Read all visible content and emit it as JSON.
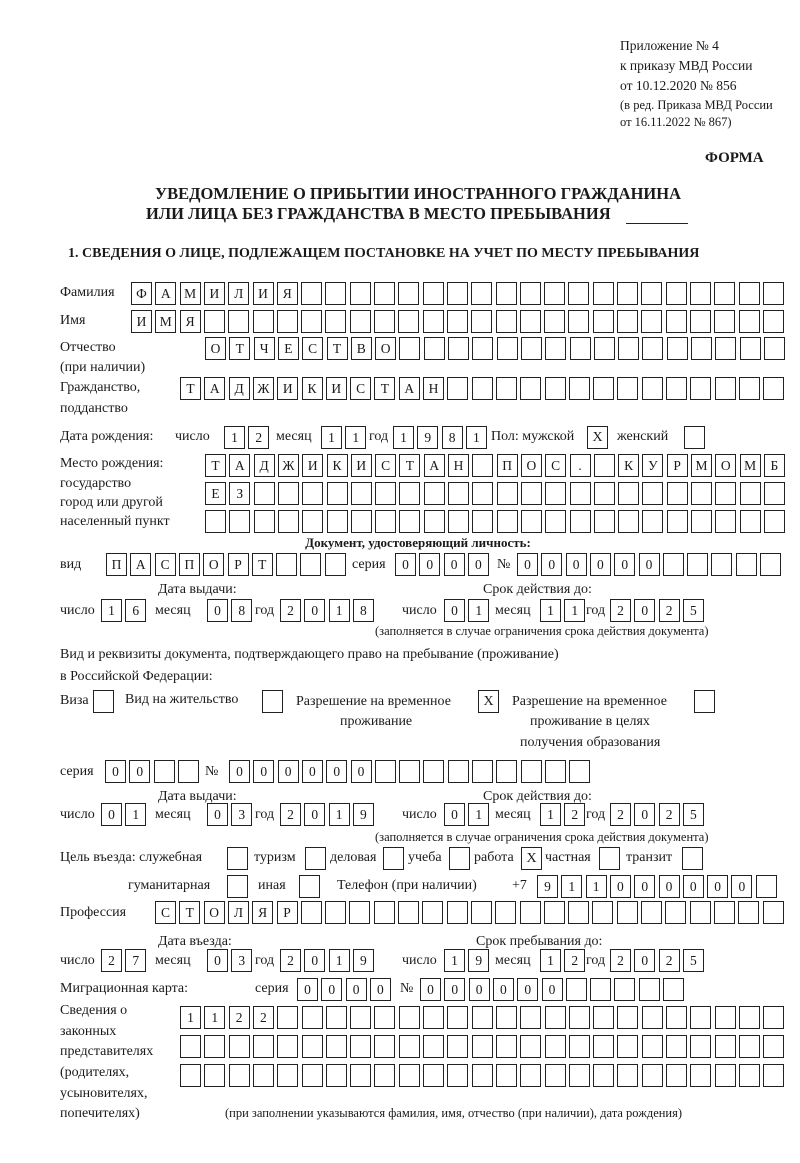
{
  "header": {
    "appendix": "Приложение № 4",
    "order": "к приказу МВД России",
    "order_date": "от 10.12.2020 № 856",
    "edition_1": "(в ред. Приказа МВД России",
    "edition_2": "от 16.11.2022 № 867)",
    "form_label": "ФОРМА"
  },
  "title": {
    "line1": "УВЕДОМЛЕНИЕ О ПРИБЫТИИ ИНОСТРАННОГО ГРАЖДАНИНА",
    "line2": "ИЛИ ЛИЦА БЕЗ ГРАЖДАНСТВА В МЕСТО ПРЕБЫВАНИЯ"
  },
  "section1": {
    "heading": "1. СВЕДЕНИЯ О ЛИЦЕ, ПОДЛЕЖАЩЕМ ПОСТАНОВКЕ НА УЧЕТ ПО МЕСТУ ПРЕБЫВАНИЯ",
    "labels": {
      "surname": "Фамилия",
      "name": "Имя",
      "patronymic": "Отчество",
      "patronymic_note": "(при наличии)",
      "citizenship": "Гражданство,",
      "citizenship_2": "подданство",
      "birth_date": "Дата рождения:",
      "day": "число",
      "month": "месяц",
      "year": "год",
      "sex": "Пол: мужской",
      "female": "женский",
      "birthplace_1": "Место рождения:",
      "birthplace_2": "государство",
      "birthplace_3": "город или другой",
      "birthplace_4": "населенный пункт",
      "id_doc": "Документ, удостоверяющий личность:",
      "kind": "вид",
      "series": "серия",
      "number": "№",
      "issue_date": "Дата выдачи:",
      "valid_until": "Срок действия до:",
      "valid_note": "(заполняется в случае ограничения срока действия документа)",
      "stay_doc_1": "Вид и реквизиты документа, подтверждающего право на пребывание (проживание)",
      "stay_doc_2": "в Российской Федерации:",
      "visa": "Виза",
      "residence": "Вид на жительство",
      "temp_permit_1": "Разрешение на временное",
      "temp_permit_2": "проживание",
      "edu_permit_1": "Разрешение на временное",
      "edu_permit_2": "проживание в целях",
      "edu_permit_3": "получения образования",
      "purpose": "Цель въезда: служебная",
      "tourism": "туризм",
      "business": "деловая",
      "study": "учеба",
      "work": "работа",
      "private": "частная",
      "transit": "транзит",
      "humanitarian": "гуманитарная",
      "other": "иная",
      "phone": "Телефон (при наличии)",
      "phone_prefix": "+7",
      "profession": "Профессия",
      "entry_date": "Дата въезда:",
      "stay_until": "Срок пребывания до:",
      "migration_card": "Миграционная карта:",
      "reps_1": "Сведения о",
      "reps_2": "законных",
      "reps_3": "представителях",
      "reps_4": "(родителях,",
      "reps_5": "усыновителях,",
      "reps_6": "попечителях)",
      "reps_note": "(при заполнении указываются фамилия, имя, отчество (при наличии), дата рождения)"
    },
    "surname": [
      "Ф",
      "А",
      "М",
      "И",
      "Л",
      "И",
      "Я",
      "",
      "",
      "",
      "",
      "",
      "",
      "",
      "",
      "",
      "",
      "",
      "",
      "",
      "",
      "",
      "",
      "",
      "",
      "",
      ""
    ],
    "name": [
      "И",
      "М",
      "Я",
      "",
      "",
      "",
      "",
      "",
      "",
      "",
      "",
      "",
      "",
      "",
      "",
      "",
      "",
      "",
      "",
      "",
      "",
      "",
      "",
      "",
      "",
      "",
      ""
    ],
    "patronymic": [
      "О",
      "Т",
      "Ч",
      "Е",
      "С",
      "Т",
      "В",
      "О",
      "",
      "",
      "",
      "",
      "",
      "",
      "",
      "",
      "",
      "",
      "",
      "",
      "",
      "",
      "",
      ""
    ],
    "citizenship": [
      "Т",
      "А",
      "Д",
      "Ж",
      "И",
      "К",
      "И",
      "С",
      "Т",
      "А",
      "Н",
      "",
      "",
      "",
      "",
      "",
      "",
      "",
      "",
      "",
      "",
      "",
      "",
      "",
      ""
    ],
    "birth": {
      "day": [
        "1",
        "2"
      ],
      "month": [
        "1",
        "1"
      ],
      "year": [
        "1",
        "9",
        "8",
        "1"
      ]
    },
    "sex": {
      "male": "X",
      "female": ""
    },
    "birthplace": [
      [
        "Т",
        "А",
        "Д",
        "Ж",
        "И",
        "К",
        "И",
        "С",
        "Т",
        "А",
        "Н",
        "",
        "П",
        "О",
        "С",
        ".",
        "",
        "К",
        "У",
        "Р",
        "М",
        "О",
        "М",
        "Б"
      ],
      [
        "Е",
        "З",
        "",
        "",
        "",
        "",
        "",
        "",
        "",
        "",
        "",
        "",
        "",
        "",
        "",
        "",
        "",
        "",
        "",
        "",
        "",
        "",
        "",
        ""
      ],
      [
        "",
        "",
        "",
        "",
        "",
        "",
        "",
        "",
        "",
        "",
        "",
        "",
        "",
        "",
        "",
        "",
        "",
        "",
        "",
        "",
        "",
        "",
        "",
        ""
      ]
    ],
    "id_document": {
      "kind": [
        "П",
        "А",
        "С",
        "П",
        "О",
        "Р",
        "Т",
        "",
        "",
        ""
      ],
      "series": [
        "0",
        "0",
        "0",
        "0"
      ],
      "number": [
        "0",
        "0",
        "0",
        "0",
        "0",
        "0",
        "",
        "",
        "",
        "",
        ""
      ],
      "issue": {
        "day": [
          "1",
          "6"
        ],
        "month": [
          "0",
          "8"
        ],
        "year": [
          "2",
          "0",
          "1",
          "8"
        ]
      },
      "valid": {
        "day": [
          "0",
          "1"
        ],
        "month": [
          "1",
          "1"
        ],
        "year": [
          "2",
          "0",
          "2",
          "5"
        ]
      }
    },
    "stay_document": {
      "visa": "",
      "residence": "",
      "temp_permit": "X",
      "edu_permit": "",
      "series": [
        "0",
        "0",
        "",
        ""
      ],
      "number": [
        "0",
        "0",
        "0",
        "0",
        "0",
        "0",
        "",
        "",
        "",
        "",
        "",
        "",
        "",
        "",
        ""
      ],
      "issue": {
        "day": [
          "0",
          "1"
        ],
        "month": [
          "0",
          "3"
        ],
        "year": [
          "2",
          "0",
          "1",
          "9"
        ]
      },
      "valid": {
        "day": [
          "0",
          "1"
        ],
        "month": [
          "1",
          "2"
        ],
        "year": [
          "2",
          "0",
          "2",
          "5"
        ]
      }
    },
    "purpose": {
      "official": "",
      "tourism": "",
      "business": "",
      "study": "",
      "work": "X",
      "private": "",
      "transit": "",
      "humanitarian": "",
      "other": ""
    },
    "phone": [
      "9",
      "1",
      "1",
      "0",
      "0",
      "0",
      "0",
      "0",
      "0",
      ""
    ],
    "profession": [
      "С",
      "Т",
      "О",
      "Л",
      "Я",
      "Р",
      "",
      "",
      "",
      "",
      "",
      "",
      "",
      "",
      "",
      "",
      "",
      "",
      "",
      "",
      "",
      "",
      "",
      "",
      "",
      ""
    ],
    "entry": {
      "day": [
        "2",
        "7"
      ],
      "month": [
        "0",
        "3"
      ],
      "year": [
        "2",
        "0",
        "1",
        "9"
      ]
    },
    "stay_until": {
      "day": [
        "1",
        "9"
      ],
      "month": [
        "1",
        "2"
      ],
      "year": [
        "2",
        "0",
        "2",
        "5"
      ]
    },
    "migration_card": {
      "series": [
        "0",
        "0",
        "0",
        "0"
      ],
      "number": [
        "0",
        "0",
        "0",
        "0",
        "0",
        "0",
        "",
        "",
        "",
        "",
        ""
      ]
    },
    "representatives": [
      [
        "1",
        "1",
        "2",
        "2",
        "",
        "",
        "",
        "",
        "",
        "",
        "",
        "",
        "",
        "",
        "",
        "",
        "",
        "",
        "",
        "",
        "",
        "",
        "",
        "",
        ""
      ],
      [
        "",
        "",
        "",
        "",
        "",
        "",
        "",
        "",
        "",
        "",
        "",
        "",
        "",
        "",
        "",
        "",
        "",
        "",
        "",
        "",
        "",
        "",
        "",
        "",
        ""
      ],
      [
        "",
        "",
        "",
        "",
        "",
        "",
        "",
        "",
        "",
        "",
        "",
        "",
        "",
        "",
        "",
        "",
        "",
        "",
        "",
        "",
        "",
        "",
        "",
        "",
        ""
      ]
    ]
  }
}
